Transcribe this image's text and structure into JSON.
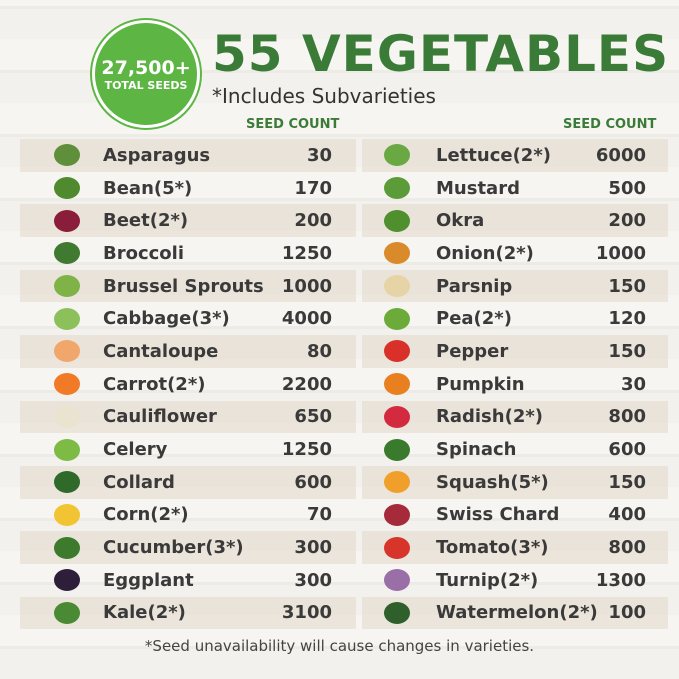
{
  "badge": {
    "number": "27,500+",
    "label": "TOTAL SEEDS"
  },
  "title": "55 VEGETABLES",
  "subtitle": "*Includes Subvarieties",
  "column_header": "SEED COUNT",
  "left": [
    {
      "name": "Asparagus",
      "count": "30",
      "color": "#5f8f3a"
    },
    {
      "name": "Bean(5*)",
      "count": "170",
      "color": "#4f8a2e"
    },
    {
      "name": "Beet(2*)",
      "count": "200",
      "color": "#8a1d3a"
    },
    {
      "name": "Broccoli",
      "count": "1250",
      "color": "#3f7a30"
    },
    {
      "name": "Brussel Sprouts",
      "count": "1000",
      "color": "#7fb347"
    },
    {
      "name": "Cabbage(3*)",
      "count": "4000",
      "color": "#8cc05a"
    },
    {
      "name": "Cantaloupe",
      "count": "80",
      "color": "#f1a66b"
    },
    {
      "name": "Carrot(2*)",
      "count": "2200",
      "color": "#f07a25"
    },
    {
      "name": "Cauliflower",
      "count": "650",
      "color": "#e9e3cf"
    },
    {
      "name": "Celery",
      "count": "1250",
      "color": "#7dbb45"
    },
    {
      "name": "Collard",
      "count": "600",
      "color": "#2f6a2a"
    },
    {
      "name": "Corn(2*)",
      "count": "70",
      "color": "#f2c332"
    },
    {
      "name": "Cucumber(3*)",
      "count": "300",
      "color": "#3d7a2c"
    },
    {
      "name": "Eggplant",
      "count": "300",
      "color": "#2d1f3a"
    },
    {
      "name": "Kale(2*)",
      "count": "3100",
      "color": "#4a8a35"
    }
  ],
  "right": [
    {
      "name": "Lettuce(2*)",
      "count": "6000",
      "color": "#6aa843"
    },
    {
      "name": "Mustard",
      "count": "500",
      "color": "#5c9c38"
    },
    {
      "name": "Okra",
      "count": "200",
      "color": "#4f8f2e"
    },
    {
      "name": "Onion(2*)",
      "count": "1000",
      "color": "#d98a2b"
    },
    {
      "name": "Parsnip",
      "count": "150",
      "color": "#e6d3a6"
    },
    {
      "name": "Pea(2*)",
      "count": "120",
      "color": "#6cab3a"
    },
    {
      "name": "Pepper",
      "count": "150",
      "color": "#d9302a"
    },
    {
      "name": "Pumpkin",
      "count": "30",
      "color": "#e8801f"
    },
    {
      "name": "Radish(2*)",
      "count": "800",
      "color": "#d42a3f"
    },
    {
      "name": "Spinach",
      "count": "600",
      "color": "#3a7a2c"
    },
    {
      "name": "Squash(5*)",
      "count": "150",
      "color": "#f0a02a"
    },
    {
      "name": "Swiss Chard",
      "count": "400",
      "color": "#a52a3a"
    },
    {
      "name": "Tomato(3*)",
      "count": "800",
      "color": "#d8352a"
    },
    {
      "name": "Turnip(2*)",
      "count": "1300",
      "color": "#9a6fa8"
    },
    {
      "name": "Watermelon(2*)",
      "count": "100",
      "color": "#2f5f2a"
    }
  ],
  "footer": "*Seed unavailability will cause changes in varieties."
}
